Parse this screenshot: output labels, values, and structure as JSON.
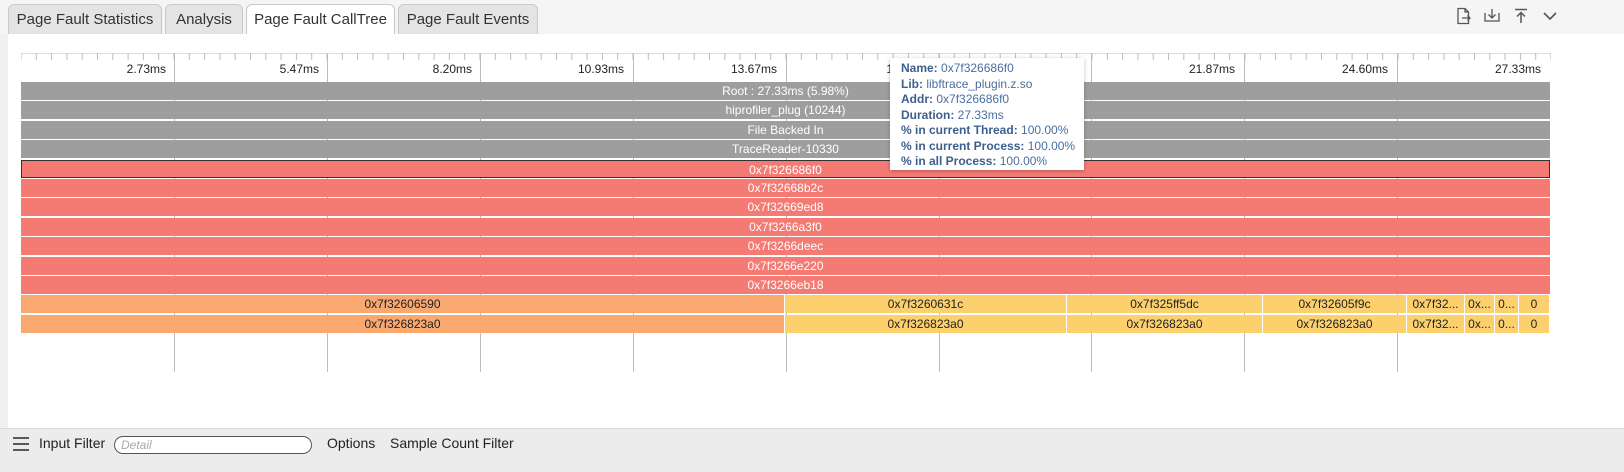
{
  "tabs": [
    {
      "label": "Page Fault Statistics",
      "active": false
    },
    {
      "label": "Analysis",
      "active": false
    },
    {
      "label": "Page Fault CallTree",
      "active": true
    },
    {
      "label": "Page Fault Events",
      "active": false
    }
  ],
  "toolbar_icons": [
    "export-file-icon",
    "download-icon",
    "move-top-icon",
    "chevron-down-icon"
  ],
  "ruler": {
    "labels": [
      "2.73ms",
      "5.47ms",
      "8.20ms",
      "10.93ms",
      "13.67ms",
      "1",
      "21.87ms",
      "24.60ms",
      "27.33ms"
    ]
  },
  "flame": {
    "rows": [
      [
        {
          "label": "Root : 27.33ms  (5.98%)",
          "color": "gray"
        }
      ],
      [
        {
          "label": "hiprofiler_plug (10244)",
          "color": "gray"
        }
      ],
      [
        {
          "label": "File Backed In",
          "color": "gray"
        }
      ],
      [
        {
          "label": "TraceReader-10330",
          "color": "gray"
        }
      ],
      [
        {
          "label": "0x7f326686f0",
          "color": "red",
          "selected": true
        }
      ],
      [
        {
          "label": "0x7f32668b2c",
          "color": "red"
        }
      ],
      [
        {
          "label": "0x7f32669ed8",
          "color": "red"
        }
      ],
      [
        {
          "label": "0x7f3266a3f0",
          "color": "red"
        }
      ],
      [
        {
          "label": "0x7f3266deec",
          "color": "red"
        }
      ],
      [
        {
          "label": "0x7f3266e220",
          "color": "red"
        }
      ],
      [
        {
          "label": "0x7f3266eb18",
          "color": "red"
        }
      ],
      [
        {
          "label": "0x7f32606590",
          "color": "orange"
        },
        {
          "label": "0x7f3260631c",
          "color": "yellow"
        },
        {
          "label": "0x7f325ff5dc",
          "color": "yellow"
        },
        {
          "label": "0x7f32605f9c",
          "color": "yellow"
        },
        {
          "label": "0x7f32...",
          "color": "yellow"
        },
        {
          "label": "0x...",
          "color": "yellow"
        },
        {
          "label": "0...",
          "color": "yellow"
        },
        {
          "label": "0",
          "color": "yellow"
        }
      ],
      [
        {
          "label": "0x7f326823a0",
          "color": "orange"
        },
        {
          "label": "0x7f326823a0",
          "color": "yellow"
        },
        {
          "label": "0x7f326823a0",
          "color": "yellow"
        },
        {
          "label": "0x7f326823a0",
          "color": "yellow"
        },
        {
          "label": "0x7f32...",
          "color": "yellow"
        },
        {
          "label": "0x...",
          "color": "yellow"
        },
        {
          "label": "0...",
          "color": "yellow"
        },
        {
          "label": "0",
          "color": "yellow"
        }
      ]
    ]
  },
  "tooltip": {
    "name_key": "Name:",
    "name": "0x7f326686f0",
    "lib_key": "Lib:",
    "lib": "libftrace_plugin.z.so",
    "addr_key": "Addr:",
    "addr": "0x7f326686f0",
    "duration_key": "Duration:",
    "duration": "27.33ms",
    "thread_key": "% in current Thread:",
    "thread": "100.00%",
    "process_key": "% in current Process:",
    "process": "100.00%",
    "all_key": "% in all Process:",
    "all": "100.00%"
  },
  "bottom": {
    "input_filter_label": "Input Filter",
    "detail_placeholder": "Detail",
    "options_label": "Options",
    "sample_count_filter_label": "Sample Count Filter"
  }
}
